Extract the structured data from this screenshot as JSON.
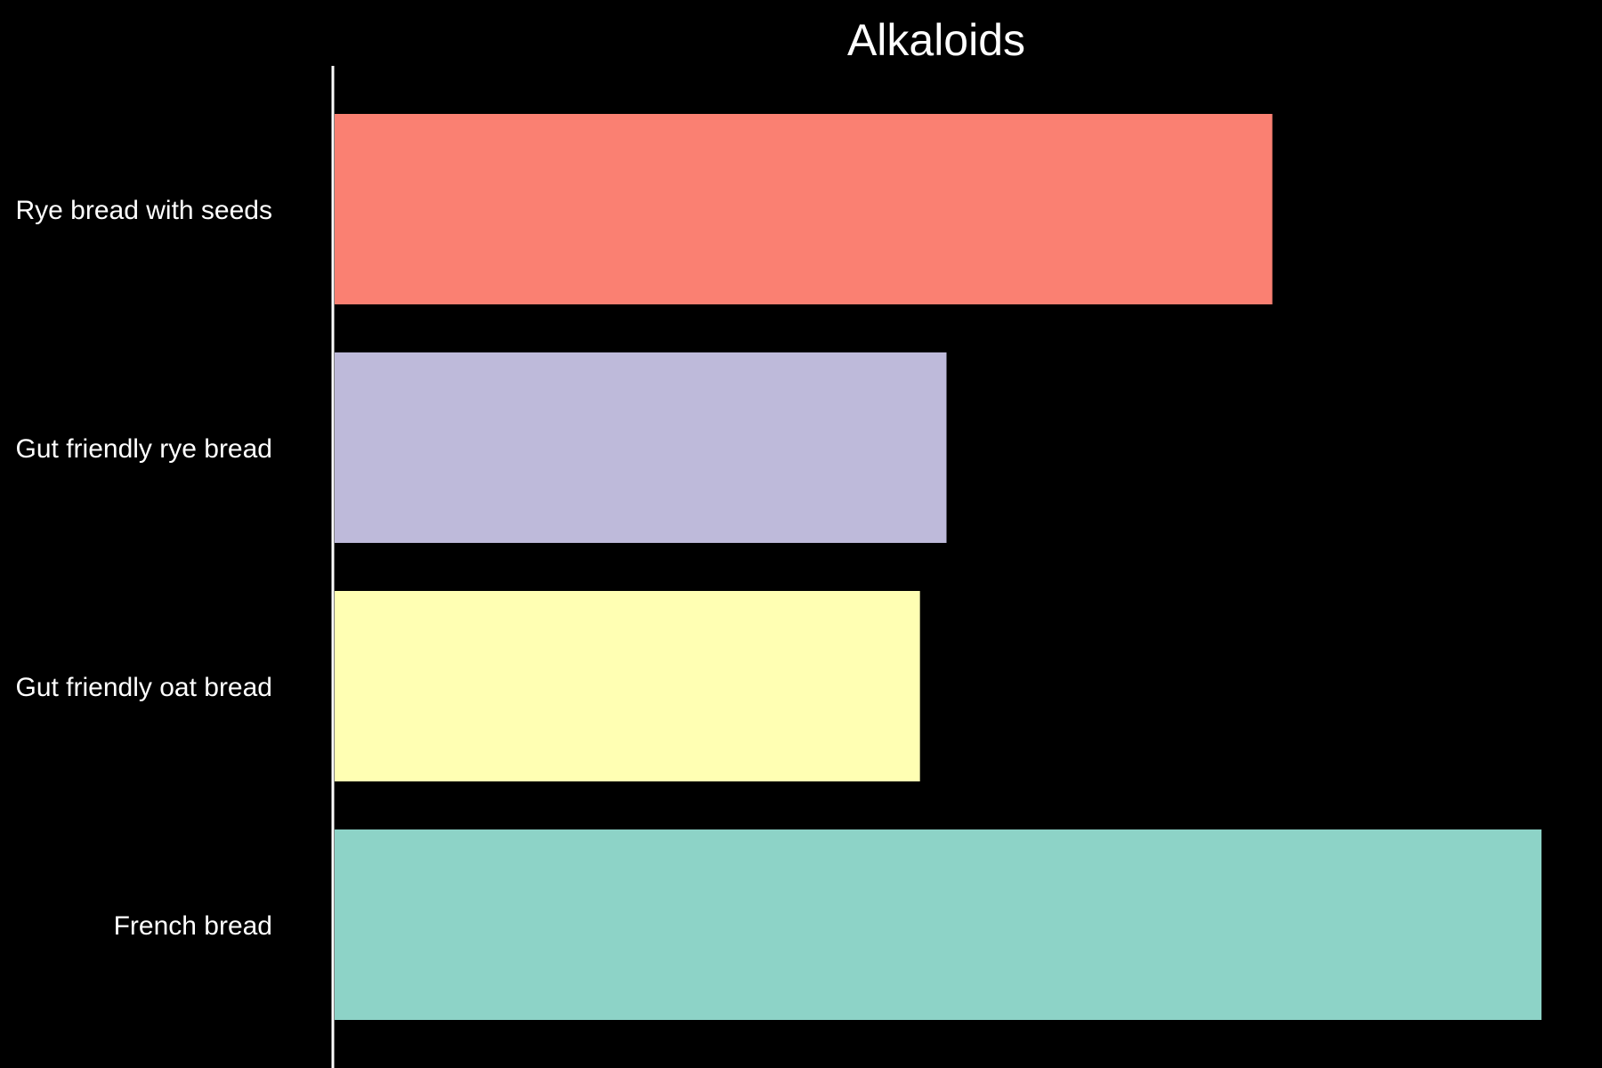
{
  "chart_data": {
    "type": "bar",
    "orientation": "horizontal",
    "title": "Alkaloids",
    "xlabel": "",
    "ylabel": "",
    "categories": [
      "Rye bread with seeds",
      "Gut friendly rye bread",
      "Gut friendly oat bread",
      "French bread"
    ],
    "values": [
      77.7,
      50.7,
      48.5,
      100
    ],
    "colors": [
      "#fa8072",
      "#bebada",
      "#ffffb3",
      "#8dd3c7"
    ],
    "xlim": [
      0,
      100
    ],
    "grid": false,
    "legend": "none"
  }
}
